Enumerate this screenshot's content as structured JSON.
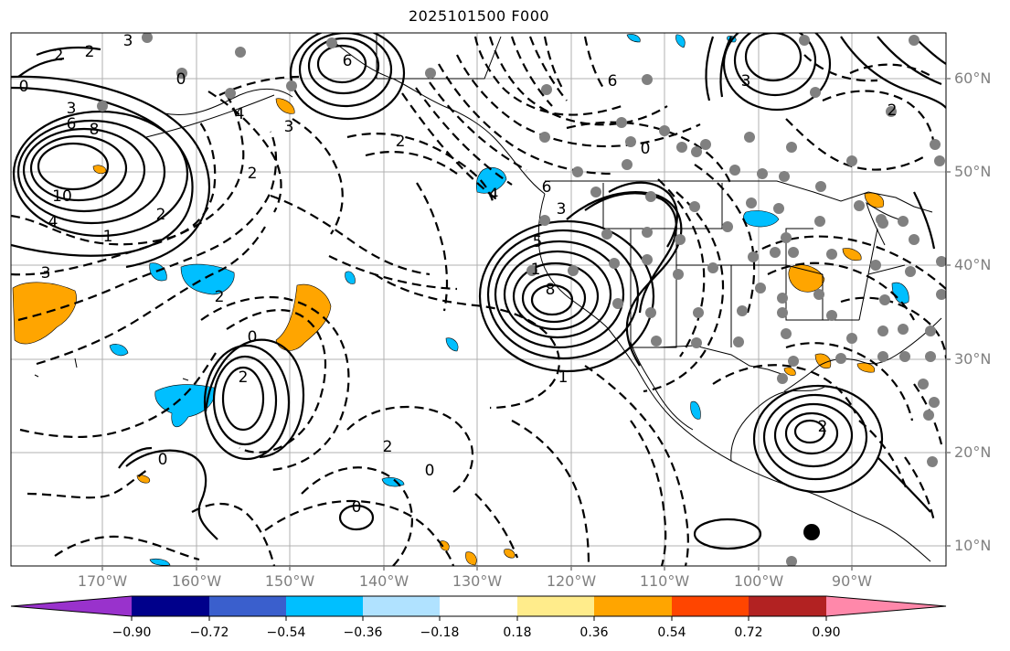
{
  "title": "2025101500 F000",
  "lat_labels": [
    "60°N",
    "50°N",
    "40°N",
    "30°N",
    "20°N",
    "10°N"
  ],
  "lon_labels": [
    "170°W",
    "160°W",
    "150°W",
    "140°W",
    "130°W",
    "120°W",
    "110°W",
    "100°W",
    "90°W"
  ],
  "colorbar": {
    "ticks": [
      "−0.90",
      "−0.72",
      "−0.54",
      "−0.36",
      "−0.18",
      "0.18",
      "0.36",
      "0.54",
      "0.72",
      "0.90"
    ],
    "colors": [
      "#9932cc",
      "#00008b",
      "#3a5fcd",
      "#00bfff",
      "#b0e2ff",
      "#ffffff",
      "#ffec8b",
      "#ffa500",
      "#ff4500",
      "#b22222",
      "#ff88aa"
    ]
  },
  "contour_labels": [
    "3",
    "2",
    "2",
    "0",
    "3",
    "6",
    "8",
    "10",
    "4",
    "1",
    "3",
    "6",
    "0",
    "6",
    "4",
    "2",
    "3",
    "2",
    "0",
    "3",
    "5",
    "1",
    "2",
    "4",
    "6",
    "0",
    "2",
    "0",
    "2",
    "1",
    "0",
    "2",
    "0",
    "3",
    "2",
    "8",
    "2"
  ],
  "fill_colors": {
    "orange": "#ffa500",
    "blue": "#00bfff"
  }
}
